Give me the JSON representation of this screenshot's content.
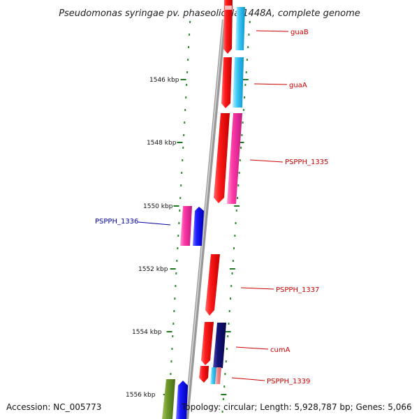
{
  "title": "Pseudomonas syringae pv. phaseolicola 1448A, complete genome",
  "footer": {
    "accession": "Accession: NC_005773",
    "topology": "Topology: circular; Length: 5,928,787 bp; Genes: 5,066"
  },
  "scale_labels": [
    "1546 kbp",
    "1548 kbp",
    "1550 kbp",
    "1552 kbp",
    "1554 kbp",
    "1556 kbp"
  ],
  "gene_labels": [
    {
      "name": "guaB",
      "color": "#cc0000"
    },
    {
      "name": "guaA",
      "color": "#cc0000"
    },
    {
      "name": "PSPPH_1335",
      "color": "#cc0000"
    },
    {
      "name": "PSPPH_1336",
      "color": "#0000aa"
    },
    {
      "name": "PSPPH_1337",
      "color": "#cc0000"
    },
    {
      "name": "cumA",
      "color": "#cc0000"
    },
    {
      "name": "PSPPH_1339",
      "color": "#cc0000"
    }
  ]
}
